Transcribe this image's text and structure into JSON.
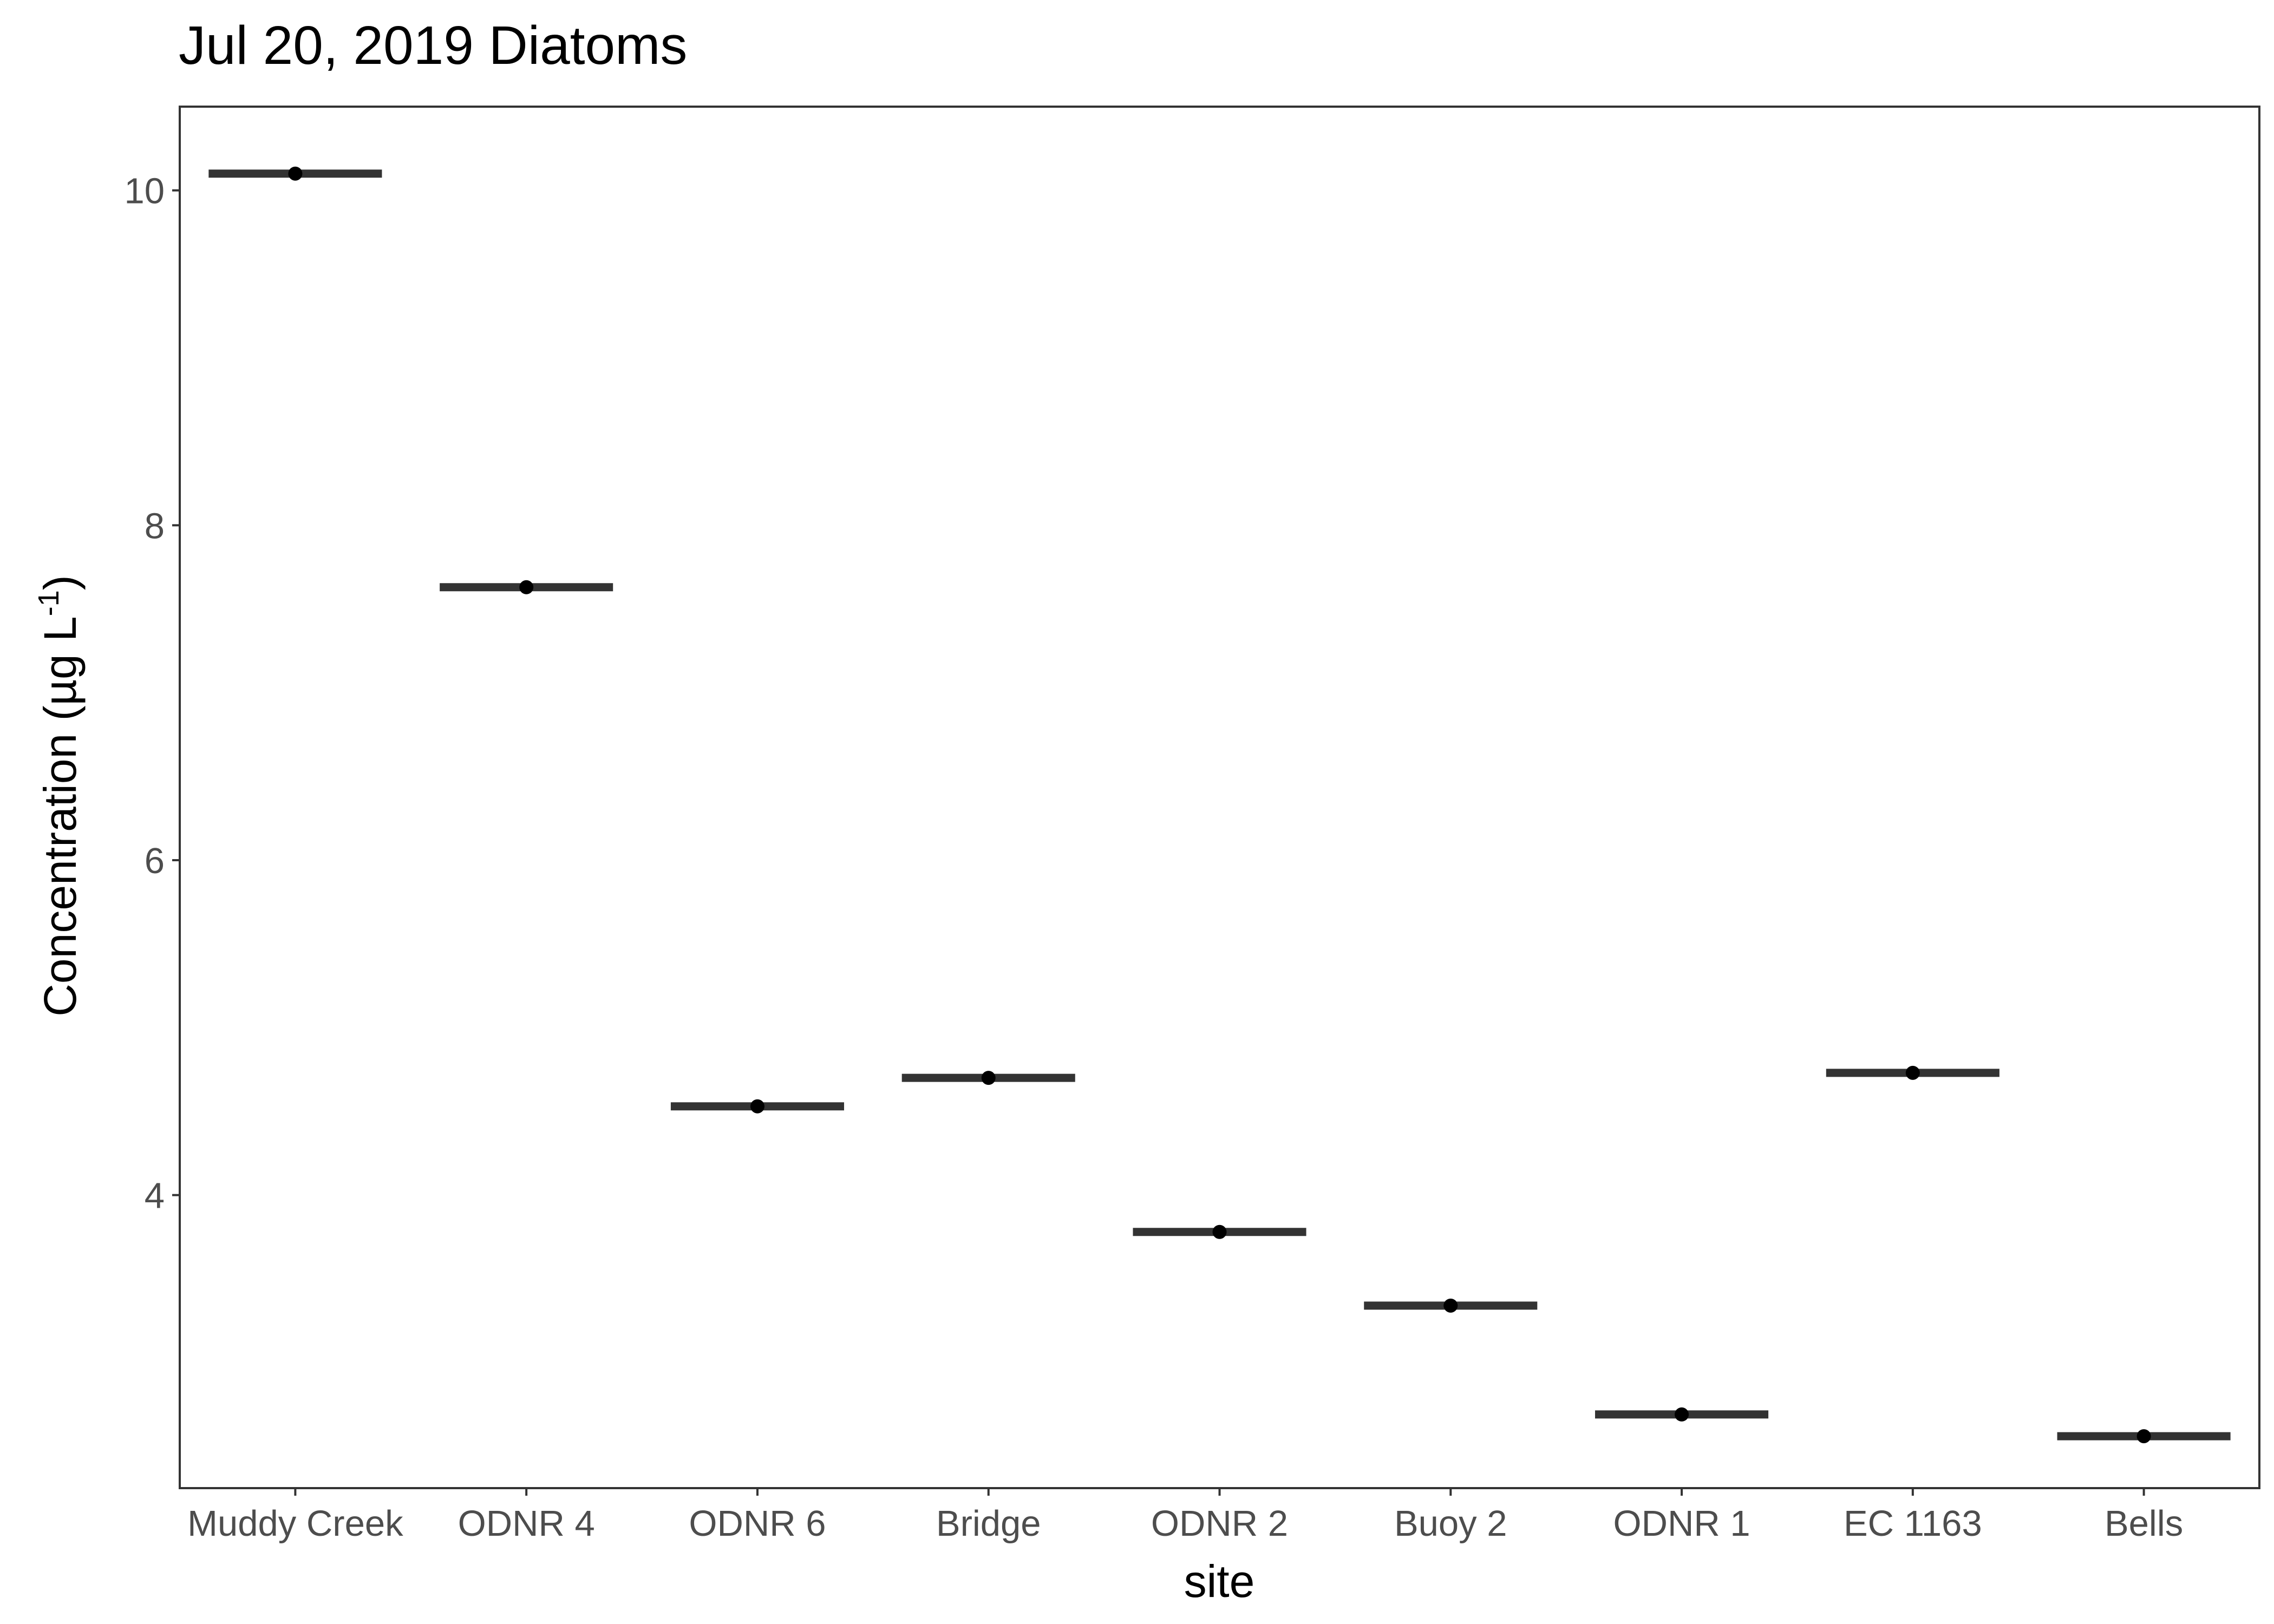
{
  "chart_data": {
    "type": "scatter",
    "title": "Jul 20, 2019 Diatoms",
    "xlabel": "site",
    "ylabel": {
      "text": "Concentration (µg L",
      "superscript": "-1",
      "suffix": ")"
    },
    "categories": [
      "Muddy Creek",
      "ODNR 4",
      "ODNR 6",
      "Bridge",
      "ODNR 2",
      "Buoy 2",
      "ODNR 1",
      "EC 1163",
      "Bells"
    ],
    "values": [
      10.1,
      7.63,
      4.53,
      4.7,
      3.78,
      3.34,
      2.69,
      4.73,
      2.56
    ],
    "ylim": [
      2.25,
      10.5
    ],
    "yticks": [
      4,
      6,
      8,
      10
    ],
    "grid": false,
    "legend": "none",
    "colors": {
      "mark": "#333333",
      "point": "#000000",
      "frame": "#333333",
      "tick_text": "#4d4d4d"
    }
  }
}
